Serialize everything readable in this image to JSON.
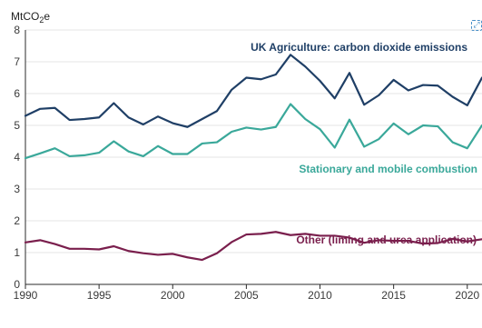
{
  "chart_data": {
    "type": "line",
    "unit_label": "MtCO",
    "unit_sub": "2",
    "unit_suffix": "e",
    "ylim": [
      0,
      8
    ],
    "y_ticks": [
      "0",
      "1",
      "2",
      "3",
      "4",
      "5",
      "6",
      "7",
      "8"
    ],
    "xlim": [
      1990,
      2021
    ],
    "x_ticks": [
      "1990",
      "1995",
      "2000",
      "2005",
      "2010",
      "2015",
      "2020"
    ],
    "grid": true,
    "x": [
      1990,
      1991,
      1992,
      1993,
      1994,
      1995,
      1996,
      1997,
      1998,
      1999,
      2000,
      2001,
      2002,
      2003,
      2004,
      2005,
      2006,
      2007,
      2008,
      2009,
      2010,
      2011,
      2012,
      2013,
      2014,
      2015,
      2016,
      2017,
      2018,
      2019,
      2020,
      2021
    ],
    "series": [
      {
        "name": "UK Agriculture: carbon dioxide emissions",
        "color": "#1f3f66",
        "values": [
          5.3,
          5.52,
          5.55,
          5.17,
          5.2,
          5.25,
          5.7,
          5.25,
          5.03,
          5.28,
          5.07,
          4.95,
          5.2,
          5.45,
          6.12,
          6.5,
          6.45,
          6.6,
          7.22,
          6.85,
          6.4,
          5.85,
          6.65,
          5.65,
          5.95,
          6.43,
          6.1,
          6.27,
          6.25,
          5.9,
          5.63,
          6.5
        ]
      },
      {
        "name": "Stationary and mobile combustion",
        "color": "#3aa89a",
        "values": [
          3.97,
          4.12,
          4.28,
          4.03,
          4.06,
          4.14,
          4.5,
          4.18,
          4.03,
          4.35,
          4.1,
          4.1,
          4.43,
          4.47,
          4.8,
          4.93,
          4.87,
          4.95,
          5.67,
          5.2,
          4.88,
          4.3,
          5.18,
          4.33,
          4.57,
          5.06,
          4.72,
          5.0,
          4.97,
          4.47,
          4.28,
          5.0
        ]
      },
      {
        "name": "Other (liming and urea application)",
        "color": "#7a1f4d",
        "values": [
          1.32,
          1.39,
          1.27,
          1.12,
          1.12,
          1.1,
          1.2,
          1.05,
          0.98,
          0.93,
          0.96,
          0.85,
          0.77,
          0.98,
          1.33,
          1.57,
          1.59,
          1.65,
          1.55,
          1.59,
          1.53,
          1.53,
          1.47,
          1.31,
          1.39,
          1.37,
          1.37,
          1.28,
          1.3,
          1.43,
          1.35,
          1.42
        ]
      }
    ]
  }
}
